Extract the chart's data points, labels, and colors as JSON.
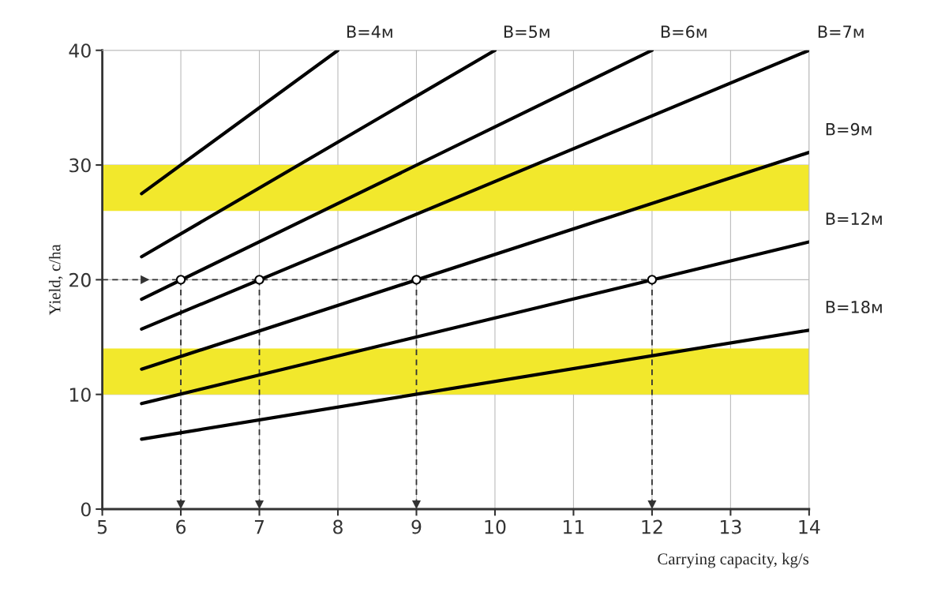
{
  "chart_data": {
    "type": "line",
    "xlabel": "Carrying capacity, kg/s",
    "ylabel": "Yield, c/ha",
    "xlim": [
      5,
      14
    ],
    "ylim": [
      0,
      40
    ],
    "xticks": [
      5,
      6,
      7,
      8,
      9,
      10,
      11,
      12,
      13,
      14
    ],
    "yticks": [
      0,
      10,
      20,
      30,
      40
    ],
    "grid": true,
    "marker": "none",
    "line_style": "solid",
    "bands": [
      {
        "axis": "y",
        "from": 26,
        "to": 30,
        "color": "#f2e82c"
      },
      {
        "axis": "y",
        "from": 10,
        "to": 14,
        "color": "#f2e82c"
      }
    ],
    "series": [
      {
        "name": "В=4м",
        "color": "#000000",
        "x": [
          5.5,
          8
        ],
        "values": [
          27.5,
          40
        ]
      },
      {
        "name": "В=5м",
        "color": "#000000",
        "x": [
          5.5,
          10
        ],
        "values": [
          22,
          40
        ]
      },
      {
        "name": "В=6м",
        "color": "#000000",
        "x": [
          5.5,
          12
        ],
        "values": [
          18.3,
          40
        ]
      },
      {
        "name": "В=7м",
        "color": "#000000",
        "x": [
          5.5,
          14
        ],
        "values": [
          15.7,
          40
        ]
      },
      {
        "name": "В=9м",
        "color": "#000000",
        "x": [
          5.5,
          14
        ],
        "values": [
          12.2,
          31.1
        ]
      },
      {
        "name": "В=12м",
        "color": "#000000",
        "x": [
          5.5,
          14
        ],
        "values": [
          9.2,
          23.3
        ]
      },
      {
        "name": "В=18м",
        "color": "#000000",
        "x": [
          5.5,
          14
        ],
        "values": [
          6.1,
          15.6
        ]
      },
      {
        "type": "line",
        "line_style": "dashed",
        "color": "#333333",
        "x": [
          5.0,
          5.6,
          12
        ],
        "values": [
          20,
          20,
          20
        ]
      },
      {
        "type": "line",
        "line_style": "dashed",
        "color": "#333333",
        "x": [
          6,
          6
        ],
        "values": [
          20,
          0
        ]
      },
      {
        "type": "line",
        "line_style": "dashed",
        "color": "#333333",
        "x": [
          7,
          7
        ],
        "values": [
          20,
          0
        ]
      },
      {
        "type": "line",
        "line_style": "dashed",
        "color": "#333333",
        "x": [
          9,
          9
        ],
        "values": [
          20,
          0
        ]
      },
      {
        "type": "line",
        "line_style": "dashed",
        "color": "#333333",
        "x": [
          12,
          12
        ],
        "values": [
          20,
          0
        ]
      },
      {
        "type": "scatter",
        "marker": "circle",
        "color": "#000000",
        "x": [
          6,
          7,
          9,
          12
        ],
        "values": [
          20,
          20,
          20,
          20
        ]
      }
    ]
  }
}
